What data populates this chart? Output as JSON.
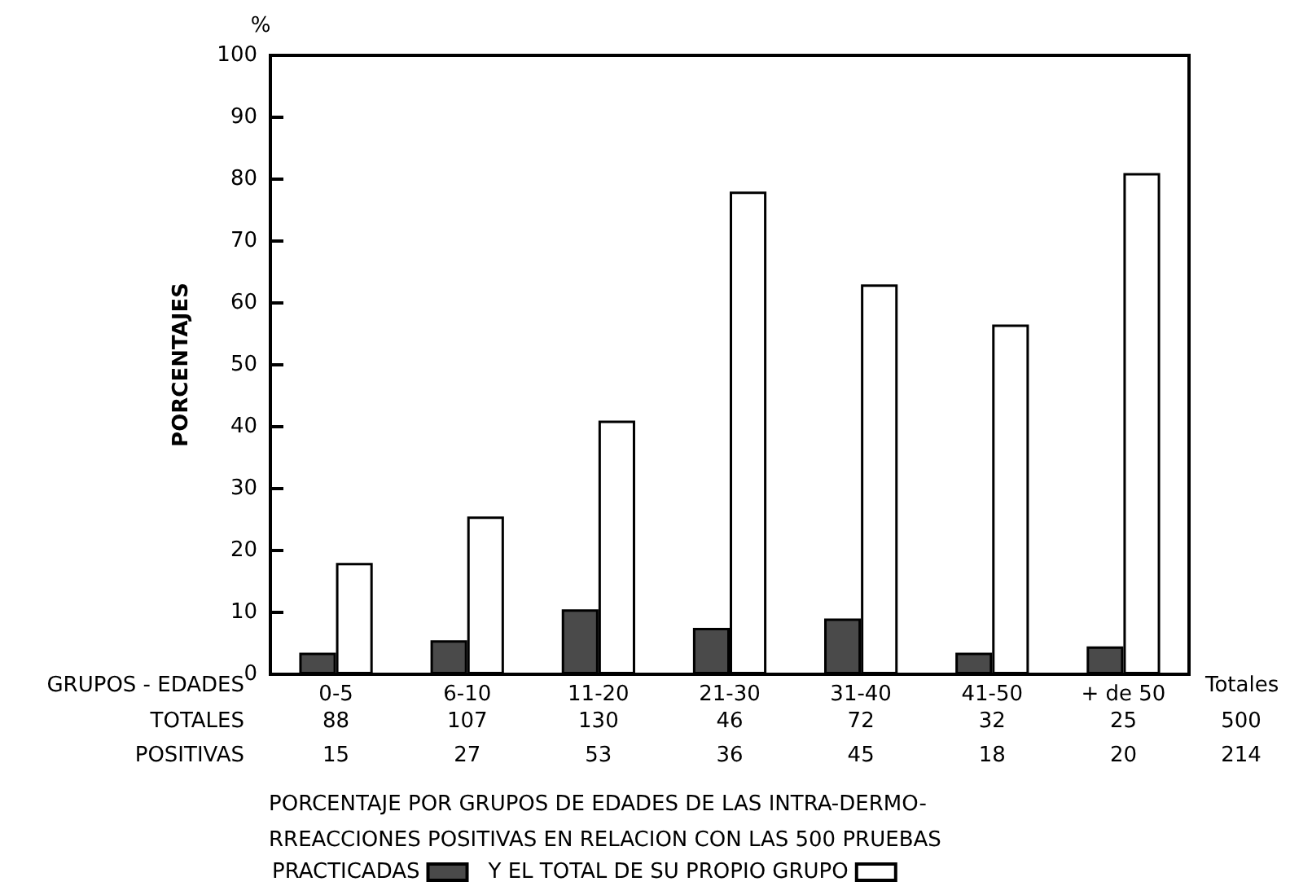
{
  "chart_data": {
    "type": "bar",
    "title": "PORCENTAJE POR GRUPOS DE EDADES DE LAS INTRA-DERMO-\nRREACCIONES POSITIVAS EN RELACION CON LAS 500 PRUEBAS",
    "xlabel": "GRUPOS - EDADES",
    "ylabel": "PORCENTAJES",
    "categories": [
      "0-5",
      "6-10",
      "11-20",
      "21-30",
      "31-40",
      "41-50",
      "+ de 50"
    ],
    "series": [
      {
        "name": "PRACTICADAS",
        "color": "#4a4a4a",
        "values": [
          3.5,
          5.5,
          10.5,
          7.5,
          9,
          3.5,
          4.5
        ]
      },
      {
        "name": "Y EL TOTAL DE SU PROPIO GRUPO",
        "color": "#ffffff",
        "values": [
          18,
          25.5,
          41,
          78,
          63,
          56.5,
          81
        ]
      }
    ],
    "ylim": [
      0,
      100
    ],
    "yticks": [
      0,
      10,
      20,
      30,
      40,
      50,
      60,
      70,
      80,
      90,
      100
    ],
    "grid": false,
    "legend": "bottom",
    "annotations": [
      "%",
      "TOTALES",
      "POSITIVAS",
      "Totales",
      "500",
      "214",
      "88",
      "107",
      "130",
      "46",
      "72",
      "32",
      "25",
      "15",
      "27",
      "53",
      "36",
      "45",
      "18",
      "20"
    ]
  }
}
